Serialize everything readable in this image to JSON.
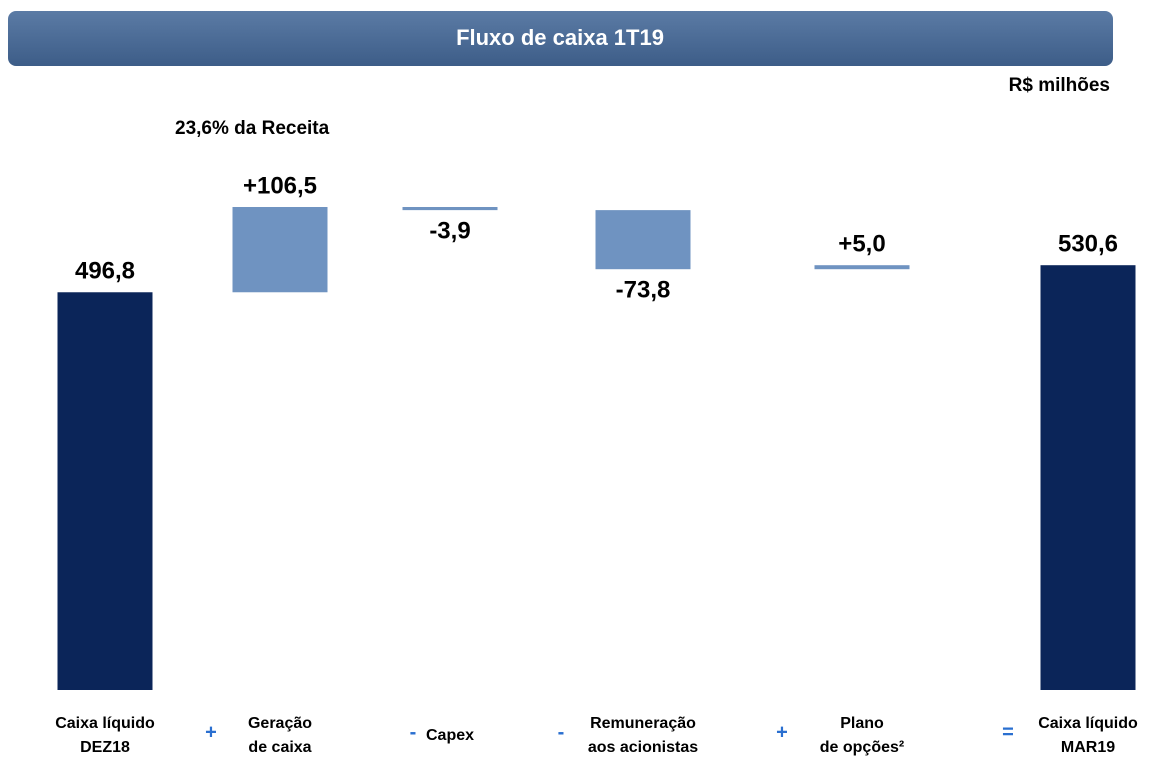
{
  "chart_data": {
    "type": "waterfall",
    "title": "Fluxo de caixa 1T19",
    "unit_label": "R$ milhões",
    "annotation": "23,6% da Receita",
    "categories": [
      [
        "Caixa líquido",
        "DEZ18"
      ],
      [
        "Geração",
        "de caixa"
      ],
      [
        "Capex"
      ],
      [
        "Remuneração",
        "aos acionistas"
      ],
      [
        "Plano",
        "de opções²"
      ],
      [
        "Caixa líquido",
        "MAR19"
      ]
    ],
    "operators": [
      "+",
      "-",
      "-",
      "+",
      "="
    ],
    "values": [
      496.8,
      106.5,
      -3.9,
      -73.8,
      5.0,
      530.6
    ],
    "value_labels": [
      "496,8",
      "+106,5",
      "-3,9",
      "-73,8",
      "+5,0",
      "530,6"
    ],
    "total_color": "#0b2559",
    "delta_color": "#6f93c1"
  }
}
